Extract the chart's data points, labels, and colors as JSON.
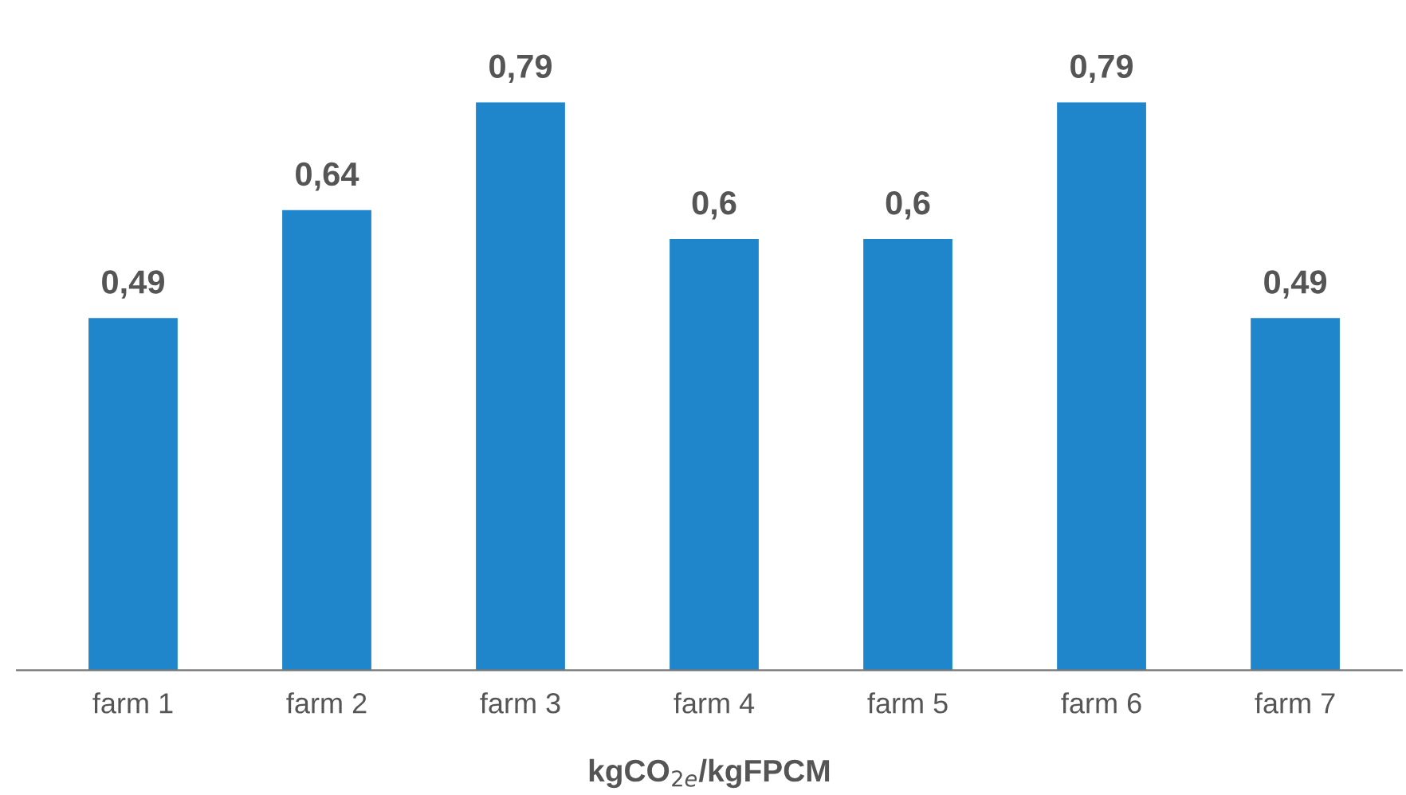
{
  "chart_data": {
    "type": "bar",
    "categories": [
      "farm 1",
      "farm 2",
      "farm 3",
      "farm 4",
      "farm 5",
      "farm 6",
      "farm 7"
    ],
    "values": [
      0.49,
      0.64,
      0.79,
      0.6,
      0.6,
      0.79,
      0.49
    ],
    "value_labels": [
      "0,49",
      "0,64",
      "0,79",
      "0,6",
      "0,6",
      "0,79",
      "0,49"
    ],
    "color": "#1f86cb",
    "xlabel": "kgCO$_{2e}$/kgFPCM",
    "grid": false,
    "legend": false
  }
}
